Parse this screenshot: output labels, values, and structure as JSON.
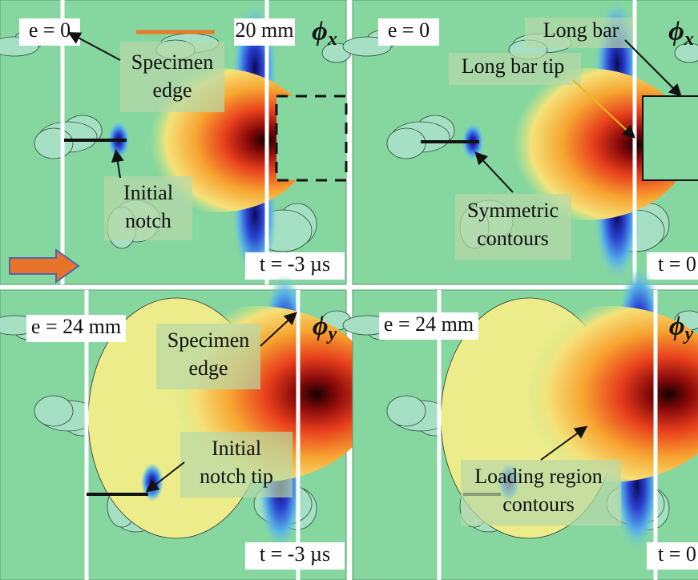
{
  "panels": [
    {
      "e_label": "e = 0",
      "scale_label": "20 mm",
      "field": {
        "symbol": "ϕ",
        "subscript": "x"
      },
      "time": "t = -3 µs",
      "annotations": [
        {
          "lines": [
            "Specimen",
            "edge"
          ]
        },
        {
          "lines": [
            "Initial",
            "notch"
          ]
        }
      ]
    },
    {
      "e_label": "e = 0",
      "field": {
        "symbol": "ϕ",
        "subscript": "x"
      },
      "time": "t = 0",
      "annotations": [
        {
          "lines": [
            "Long bar"
          ]
        },
        {
          "lines": [
            "Long bar tip"
          ]
        },
        {
          "lines": [
            "Symmetric",
            "contours"
          ]
        }
      ]
    },
    {
      "e_label": "e = 24 mm",
      "field": {
        "symbol": "ϕ",
        "subscript": "y"
      },
      "time": "t = -3 µs",
      "annotations": [
        {
          "lines": [
            "Specimen",
            "edge"
          ]
        },
        {
          "lines": [
            "Initial",
            "notch tip"
          ]
        }
      ]
    },
    {
      "e_label": "e = 24 mm",
      "field": {
        "symbol": "ϕ",
        "subscript": "y"
      },
      "time": "t = 0",
      "annotations": [
        {
          "lines": [
            "Loading region",
            "contours"
          ]
        }
      ]
    }
  ]
}
